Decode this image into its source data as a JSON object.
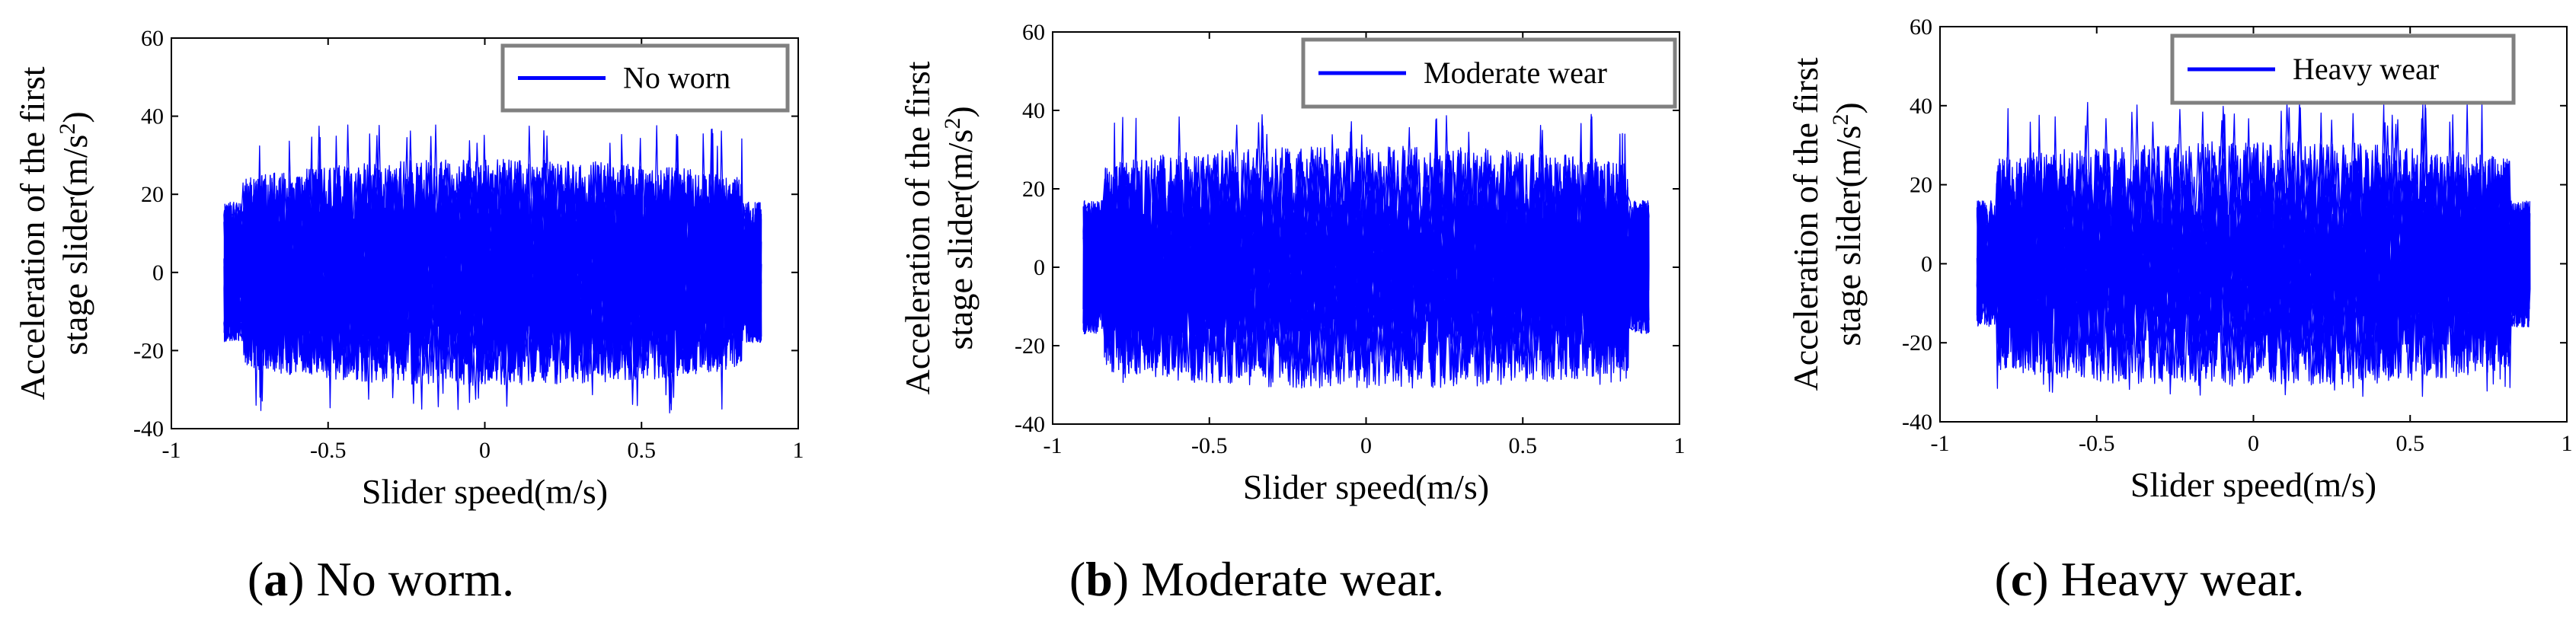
{
  "chart_data": [
    {
      "type": "line",
      "caption": {
        "letter": "a",
        "text": "No worm."
      },
      "xlabel": "Slider speed(m/s)",
      "ylabel": [
        "Acceleration of the first",
        "stage slider(m/s",
        "2",
        ")"
      ],
      "xlim": [
        -1,
        1
      ],
      "ylim": [
        -40,
        60
      ],
      "xticks": [
        -1,
        -0.5,
        0,
        0.5,
        1
      ],
      "xtick_labels": [
        "-1",
        "-0.5",
        "0",
        "0.5",
        "1"
      ],
      "yticks": [
        -40,
        -20,
        0,
        20,
        40,
        60
      ],
      "ytick_labels": [
        "-40",
        "-20",
        "0",
        "20",
        "40",
        "60"
      ],
      "series": [
        {
          "name": "No worn",
          "color": "#0000ff",
          "x_range": [
            -0.83,
            0.88
          ],
          "band_center": 20,
          "band_half_width": 9,
          "noise_peak": 38,
          "noise_trough": -36
        }
      ],
      "legend": {
        "label": "No worn",
        "position": "top-right"
      }
    },
    {
      "type": "line",
      "caption": {
        "letter": "b",
        "text": "Moderate wear."
      },
      "xlabel": "Slider speed(m/s)",
      "ylabel": [
        "Acceleration of the first",
        "stage slider(m/s",
        "2",
        ")"
      ],
      "xlim": [
        -1,
        1
      ],
      "ylim": [
        -40,
        60
      ],
      "xticks": [
        -1,
        -0.5,
        0,
        0.5,
        1
      ],
      "xtick_labels": [
        "-1",
        "-0.5",
        "0",
        "0.5",
        "1"
      ],
      "yticks": [
        -40,
        -20,
        0,
        20,
        40,
        60
      ],
      "ytick_labels": [
        "-40",
        "-20",
        "0",
        "20",
        "40",
        "60"
      ],
      "series": [
        {
          "name": "Moderate wear",
          "color": "#0000ff",
          "x_range": [
            -0.9,
            0.9
          ],
          "band_center": 19,
          "band_half_width": 12,
          "noise_peak": 39,
          "noise_trough": -30
        }
      ],
      "legend": {
        "label": "Moderate wear",
        "position": "top-right"
      }
    },
    {
      "type": "line",
      "caption": {
        "letter": "c",
        "text": "Heavy wear."
      },
      "xlabel": "Slider speed(m/s)",
      "ylabel": [
        "Acceleration of the first",
        "stage slider(m/s",
        "2",
        ")"
      ],
      "xlim": [
        -1,
        1
      ],
      "ylim": [
        -40,
        60
      ],
      "xticks": [
        -1,
        -0.5,
        0,
        0.5,
        1
      ],
      "xtick_labels": [
        "-1",
        "-0.5",
        "0",
        "0.5",
        "1"
      ],
      "yticks": [
        -40,
        -20,
        0,
        20,
        40,
        60
      ],
      "ytick_labels": [
        "-40",
        "-20",
        "0",
        "20",
        "40",
        "60"
      ],
      "series": [
        {
          "name": "Heavy wear",
          "color": "#0000ff",
          "x_range": [
            -0.88,
            0.88
          ],
          "band_center": 18,
          "band_half_width": 13,
          "noise_peak": 41,
          "noise_trough": -34
        }
      ],
      "legend": {
        "label": "Heavy wear",
        "position": "top-right"
      }
    }
  ]
}
